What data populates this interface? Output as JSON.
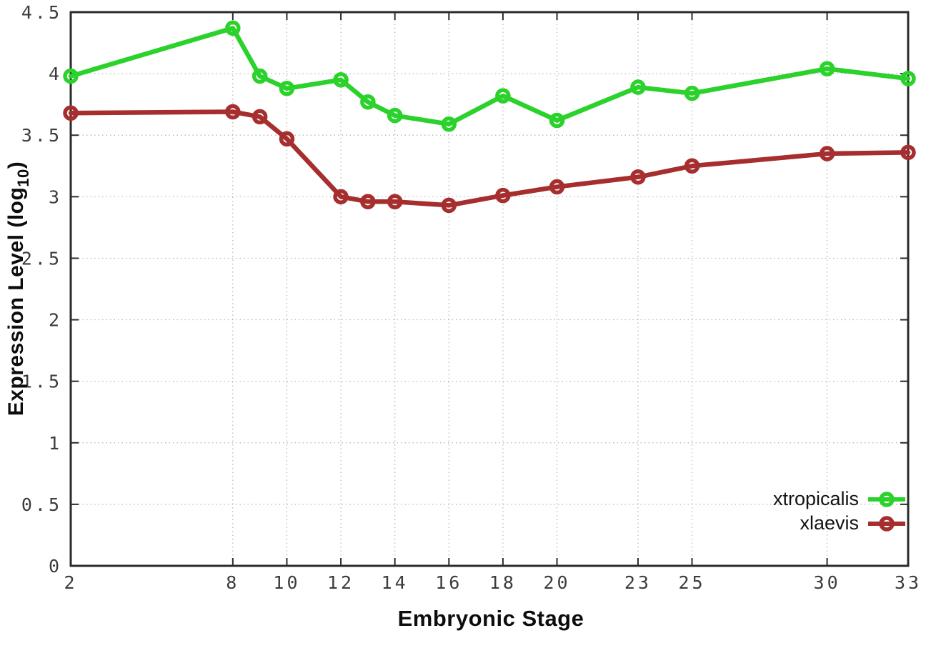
{
  "chart_data": {
    "type": "line",
    "title": "",
    "xlabel": "Embryonic Stage",
    "ylabel_prefix": "Expression Level (log",
    "ylabel_sub": "10",
    "ylabel_suffix": ")",
    "xlim": [
      2,
      33
    ],
    "ylim": [
      0,
      4.5
    ],
    "grid": true,
    "legend_position": "bottom-right",
    "x_ticks": [
      2,
      8,
      10,
      12,
      14,
      16,
      18,
      20,
      23,
      25,
      30,
      33
    ],
    "x_tick_labels": [
      "2",
      "8",
      "10",
      "12",
      "14",
      "16",
      "18",
      "20",
      "23",
      "25",
      "30",
      "33"
    ],
    "y_ticks": [
      0,
      0.5,
      1,
      1.5,
      2,
      2.5,
      3,
      3.5,
      4,
      4.5
    ],
    "y_tick_labels": [
      "0",
      "0.5",
      "1",
      "1.5",
      "2",
      "2.5",
      "3",
      "3.5",
      "4",
      "4.5"
    ],
    "x": [
      2,
      8,
      9,
      10,
      12,
      13,
      14,
      16,
      18,
      20,
      23,
      25,
      30,
      33
    ],
    "series": [
      {
        "name": "xtropicalis",
        "color": "#2bd22b",
        "values": [
          3.98,
          4.37,
          3.98,
          3.88,
          3.95,
          3.77,
          3.66,
          3.59,
          3.82,
          3.62,
          3.89,
          3.84,
          4.04,
          3.96
        ]
      },
      {
        "name": "xlaevis",
        "color": "#a62e2e",
        "values": [
          3.68,
          3.69,
          3.65,
          3.47,
          3.0,
          2.96,
          2.96,
          2.93,
          3.01,
          3.08,
          3.16,
          3.25,
          3.35,
          3.36
        ]
      }
    ],
    "axis_color": "#2b2b2b",
    "grid_color": "#b3b3b3",
    "tick_label_color": "#3c3c3c"
  }
}
